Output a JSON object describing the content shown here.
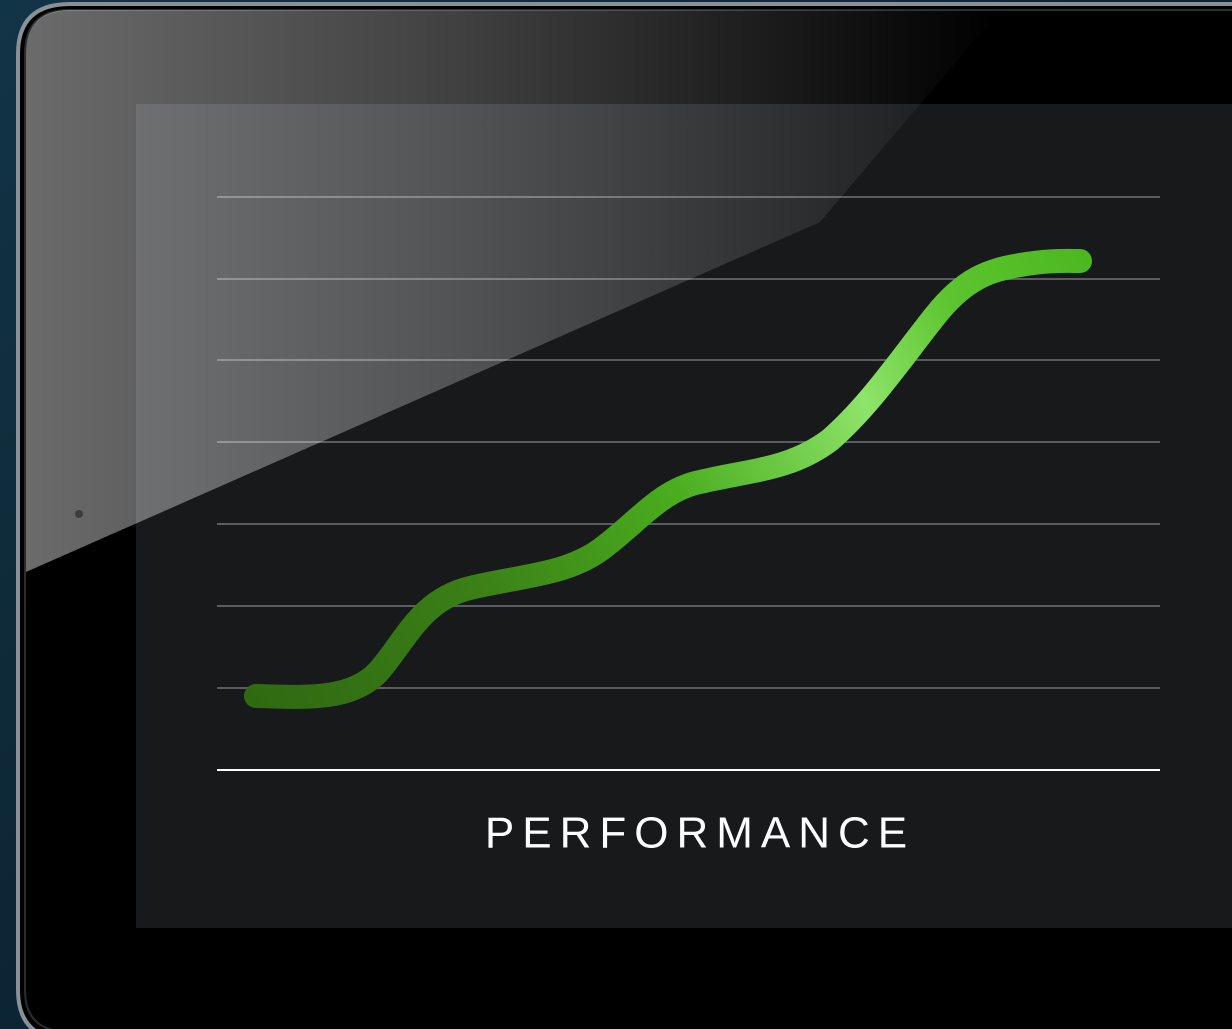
{
  "screen": {
    "label": "PERFORMANCE"
  }
}
